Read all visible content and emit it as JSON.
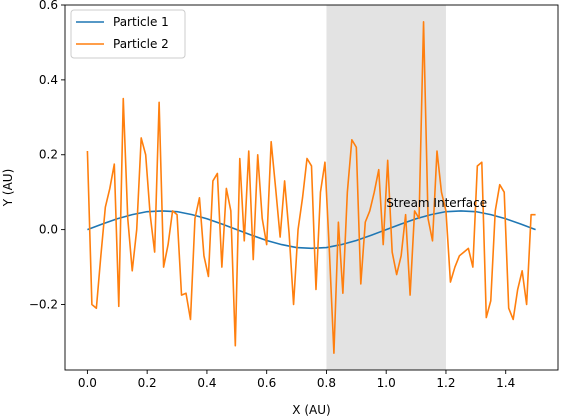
{
  "chart_data": {
    "type": "line",
    "xlabel": "X (AU)",
    "ylabel": "Y (AU)",
    "xlim": [
      -0.075,
      1.575
    ],
    "ylim": [
      -0.375,
      0.6
    ],
    "xticks": [
      0.0,
      0.2,
      0.4,
      0.6,
      0.8,
      1.0,
      1.2,
      1.4
    ],
    "xtick_labels": [
      "0.0",
      "0.2",
      "0.4",
      "0.6",
      "0.8",
      "1.0",
      "1.2",
      "1.4"
    ],
    "yticks": [
      -0.2,
      0.0,
      0.2,
      0.4,
      0.6
    ],
    "ytick_labels": [
      "−0.2",
      "0.0",
      "0.2",
      "0.4",
      "0.6"
    ],
    "grid": false,
    "legend_position": "top-left",
    "shaded_region": {
      "x": [
        0.8,
        1.2
      ],
      "color": "#e3e3e3"
    },
    "annotations": [
      {
        "text": "Stream Interface",
        "x": 1.0,
        "y": 0.06
      }
    ],
    "series": [
      {
        "name": "Particle 1",
        "color": "#1f77b4",
        "x": [
          0.0,
          0.05,
          0.1,
          0.15,
          0.2,
          0.25,
          0.3,
          0.35,
          0.4,
          0.45,
          0.5,
          0.55,
          0.6,
          0.65,
          0.7,
          0.75,
          0.8,
          0.85,
          0.9,
          0.95,
          1.0,
          1.05,
          1.1,
          1.15,
          1.2,
          1.25,
          1.3,
          1.35,
          1.4,
          1.45,
          1.5
        ],
        "y": [
          0.0,
          0.015,
          0.029,
          0.04,
          0.048,
          0.05,
          0.048,
          0.04,
          0.029,
          0.015,
          0.0,
          -0.015,
          -0.029,
          -0.04,
          -0.048,
          -0.05,
          -0.048,
          -0.04,
          -0.029,
          -0.015,
          0.0,
          0.015,
          0.029,
          0.04,
          0.048,
          0.05,
          0.048,
          0.04,
          0.029,
          0.015,
          0.0
        ]
      },
      {
        "name": "Particle 2",
        "color": "#ff7f0e",
        "x": [
          0.0,
          0.015,
          0.03,
          0.045,
          0.06,
          0.075,
          0.09,
          0.105,
          0.12,
          0.135,
          0.15,
          0.165,
          0.18,
          0.195,
          0.21,
          0.225,
          0.24,
          0.255,
          0.27,
          0.285,
          0.3,
          0.315,
          0.33,
          0.345,
          0.36,
          0.375,
          0.39,
          0.405,
          0.42,
          0.435,
          0.45,
          0.465,
          0.48,
          0.495,
          0.51,
          0.525,
          0.54,
          0.555,
          0.57,
          0.585,
          0.6,
          0.615,
          0.63,
          0.645,
          0.66,
          0.675,
          0.69,
          0.705,
          0.72,
          0.735,
          0.75,
          0.765,
          0.78,
          0.795,
          0.81,
          0.825,
          0.84,
          0.855,
          0.87,
          0.885,
          0.9,
          0.915,
          0.93,
          0.945,
          0.96,
          0.975,
          0.99,
          1.005,
          1.02,
          1.035,
          1.05,
          1.065,
          1.08,
          1.095,
          1.11,
          1.125,
          1.14,
          1.155,
          1.17,
          1.185,
          1.2,
          1.215,
          1.23,
          1.245,
          1.26,
          1.275,
          1.29,
          1.305,
          1.32,
          1.335,
          1.35,
          1.365,
          1.38,
          1.395,
          1.41,
          1.425,
          1.44,
          1.455,
          1.47,
          1.485,
          1.5
        ],
        "y": [
          0.21,
          -0.2,
          -0.21,
          -0.07,
          0.06,
          0.11,
          0.175,
          -0.205,
          0.35,
          0.03,
          -0.11,
          0.0,
          0.245,
          0.2,
          0.04,
          -0.06,
          0.34,
          -0.1,
          -0.04,
          0.05,
          0.04,
          -0.175,
          -0.17,
          -0.24,
          0.03,
          0.085,
          -0.07,
          -0.125,
          0.13,
          0.15,
          -0.1,
          0.11,
          0.05,
          -0.31,
          0.19,
          -0.03,
          0.21,
          -0.08,
          0.2,
          0.03,
          -0.04,
          0.235,
          0.11,
          -0.02,
          0.13,
          -0.01,
          -0.2,
          0.0,
          0.085,
          0.19,
          0.17,
          -0.16,
          0.1,
          0.18,
          -0.06,
          -0.33,
          0.02,
          -0.17,
          0.1,
          0.24,
          0.22,
          -0.145,
          0.02,
          0.05,
          0.1,
          0.16,
          -0.04,
          0.185,
          -0.06,
          -0.12,
          -0.07,
          0.04,
          -0.175,
          0.05,
          0.03,
          0.555,
          0.03,
          -0.03,
          0.21,
          0.1,
          0.05,
          -0.14,
          -0.1,
          -0.07,
          -0.06,
          -0.05,
          -0.1,
          0.17,
          0.18,
          -0.235,
          -0.19,
          0.05,
          0.12,
          0.1,
          -0.21,
          -0.24,
          -0.16,
          -0.11,
          -0.2,
          0.04,
          0.04
        ]
      }
    ]
  }
}
